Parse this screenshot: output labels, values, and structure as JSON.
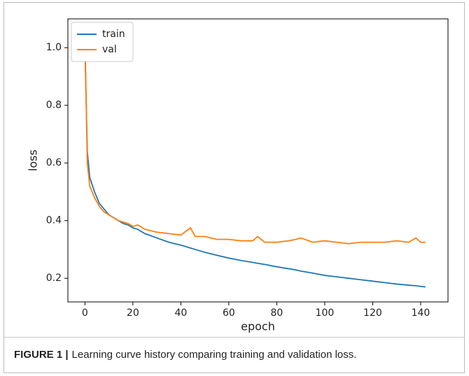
{
  "chart_data": {
    "type": "line",
    "x": [
      0,
      1,
      2,
      4,
      6,
      8,
      10,
      12,
      14,
      16,
      18,
      20,
      22,
      25,
      30,
      35,
      40,
      44,
      46,
      50,
      55,
      60,
      65,
      70,
      72,
      75,
      80,
      85,
      88,
      90,
      95,
      100,
      105,
      110,
      115,
      120,
      125,
      130,
      135,
      138,
      140,
      142
    ],
    "series": [
      {
        "name": "train",
        "color": "#1f77b4",
        "values": [
          1.0,
          0.64,
          0.55,
          0.5,
          0.46,
          0.44,
          0.42,
          0.41,
          0.4,
          0.39,
          0.385,
          0.375,
          0.37,
          0.355,
          0.34,
          0.325,
          0.315,
          0.305,
          0.3,
          0.29,
          0.28,
          0.27,
          0.262,
          0.255,
          0.252,
          0.248,
          0.24,
          0.233,
          0.229,
          0.225,
          0.218,
          0.21,
          0.205,
          0.2,
          0.195,
          0.19,
          0.185,
          0.18,
          0.176,
          0.174,
          0.172,
          0.17
        ]
      },
      {
        "name": "val",
        "color": "#ff7f0e",
        "values": [
          1.05,
          0.6,
          0.52,
          0.48,
          0.45,
          0.43,
          0.42,
          0.41,
          0.4,
          0.395,
          0.39,
          0.38,
          0.385,
          0.37,
          0.36,
          0.355,
          0.35,
          0.375,
          0.345,
          0.345,
          0.335,
          0.335,
          0.33,
          0.33,
          0.345,
          0.325,
          0.325,
          0.33,
          0.335,
          0.34,
          0.325,
          0.33,
          0.325,
          0.32,
          0.325,
          0.325,
          0.325,
          0.33,
          0.325,
          0.34,
          0.325,
          0.325
        ]
      }
    ],
    "xlabel": "epoch",
    "ylabel": "loss",
    "xlim": [
      -7.1,
      151.4
    ],
    "ylim": [
      0.118,
      1.1
    ],
    "xticks": [
      0,
      20,
      40,
      60,
      80,
      100,
      120,
      140
    ],
    "yticks": [
      0.2,
      0.4,
      0.6,
      0.8,
      {
        "value": 1,
        "label": "1.0"
      }
    ],
    "legend": "upper-left",
    "grid": false
  },
  "caption": {
    "label": "FIGURE 1 |",
    "text": "Learning curve history comparing training and validation loss."
  }
}
